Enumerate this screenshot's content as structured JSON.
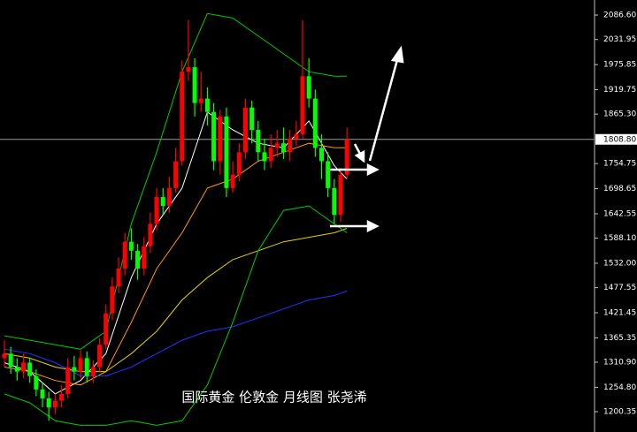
{
  "chart_data": {
    "type": "candlestick",
    "title": "国际黄金 伦敦金 月线图 张尧浠",
    "up_color": "#ff0000",
    "down_color": "#00ff00",
    "ylim": [
      1154.95,
      2120.2
    ],
    "yticks": [
      {
        "value": 2086.6,
        "label": "2086.60"
      },
      2031.95,
      1975.85,
      1919.75,
      {
        "value": 1865.3,
        "label": "1865.30"
      },
      1754.75,
      1698.65,
      1642.55,
      {
        "value": 1588.1,
        "label": "1588.10"
      },
      {
        "value": 1532,
        "label": "1532.00"
      },
      1477.55,
      1421.45,
      1365.35,
      {
        "value": 1310.9,
        "label": "1310.90"
      },
      {
        "value": 1254.8,
        "label": "1254.80"
      },
      1200.35
    ],
    "current_price": {
      "value": 1808.8,
      "label": "1808.80"
    },
    "open": [
      1320,
      1330,
      1300,
      1290,
      1310,
      1280,
      1250,
      1230,
      1210,
      1225,
      1240,
      1300,
      1290,
      1320,
      1280,
      1300,
      1350,
      1420,
      1480,
      1520,
      1580,
      1560,
      1520,
      1570,
      1620,
      1680,
      1660,
      1700,
      1760,
      1960,
      1970,
      1890,
      1900,
      1870,
      1760,
      1860,
      1700,
      1730,
      1780,
      1880,
      1830,
      1780,
      1760,
      1790,
      1800,
      1780,
      1810,
      1820,
      1950,
      1900,
      1790,
      1760,
      1700,
      1640,
      1730
    ],
    "high": [
      1360,
      1345,
      1320,
      1330,
      1320,
      1295,
      1265,
      1245,
      1240,
      1260,
      1320,
      1325,
      1340,
      1335,
      1315,
      1365,
      1440,
      1500,
      1545,
      1600,
      1610,
      1575,
      1590,
      1645,
      1700,
      1700,
      1725,
      1790,
      1985,
      2075,
      1990,
      1960,
      1925,
      1890,
      1875,
      1880,
      1760,
      1800,
      1900,
      1895,
      1850,
      1810,
      1820,
      1830,
      1835,
      1830,
      1850,
      2075,
      1990,
      1920,
      1820,
      1780,
      1720,
      1745,
      1835
    ],
    "low": [
      1300,
      1285,
      1270,
      1275,
      1265,
      1235,
      1210,
      1180,
      1195,
      1210,
      1230,
      1270,
      1275,
      1265,
      1265,
      1290,
      1340,
      1405,
      1465,
      1505,
      1540,
      1495,
      1505,
      1555,
      1605,
      1640,
      1645,
      1690,
      1750,
      1940,
      1860,
      1870,
      1840,
      1740,
      1730,
      1680,
      1690,
      1715,
      1765,
      1800,
      1760,
      1740,
      1745,
      1770,
      1765,
      1760,
      1795,
      1810,
      1880,
      1770,
      1720,
      1680,
      1620,
      1625,
      1720
    ],
    "close": [
      1330,
      1300,
      1290,
      1310,
      1280,
      1250,
      1230,
      1210,
      1225,
      1240,
      1300,
      1290,
      1320,
      1280,
      1300,
      1350,
      1420,
      1480,
      1520,
      1580,
      1560,
      1520,
      1570,
      1620,
      1680,
      1660,
      1700,
      1760,
      1960,
      1970,
      1890,
      1900,
      1870,
      1760,
      1860,
      1700,
      1730,
      1780,
      1880,
      1830,
      1780,
      1760,
      1790,
      1800,
      1780,
      1810,
      1820,
      1950,
      1900,
      1790,
      1760,
      1700,
      1640,
      1730,
      1808.8
    ],
    "overlay_x": [
      0,
      4,
      8,
      12,
      16,
      20,
      24,
      28,
      32,
      36,
      40,
      44,
      48,
      52,
      54
    ],
    "overlays": [
      {
        "color": "#ffffff",
        "values": [
          1310,
          1290,
          1240,
          1270,
          1330,
          1500,
          1620,
          1700,
          1870,
          1830,
          1800,
          1790,
          1850,
          1750,
          1720
        ]
      },
      {
        "color": "#ff9900",
        "values": [
          1300,
          1290,
          1270,
          1260,
          1290,
          1400,
          1520,
          1600,
          1700,
          1720,
          1760,
          1780,
          1800,
          1790,
          1790
        ]
      },
      {
        "color": "#e6d000",
        "values": [
          1330,
          1320,
          1300,
          1290,
          1290,
          1330,
          1380,
          1450,
          1500,
          1540,
          1560,
          1580,
          1590,
          1600,
          1610
        ]
      },
      {
        "color": "#2233ff",
        "values": [
          1340,
          1330,
          1310,
          1280,
          1280,
          1300,
          1330,
          1360,
          1380,
          1390,
          1410,
          1430,
          1450,
          1460,
          1470
        ]
      },
      {
        "color": "#00cc00",
        "values": [
          1370,
          1360,
          1350,
          1340,
          1380,
          1620,
          1780,
          1960,
          2090,
          2080,
          2040,
          2000,
          1960,
          1950,
          1950
        ]
      },
      {
        "color": "#00cc00",
        "values": [
          1240,
          1220,
          1180,
          1170,
          1170,
          1180,
          1170,
          1180,
          1260,
          1400,
          1560,
          1650,
          1660,
          1620,
          1600
        ]
      }
    ]
  }
}
